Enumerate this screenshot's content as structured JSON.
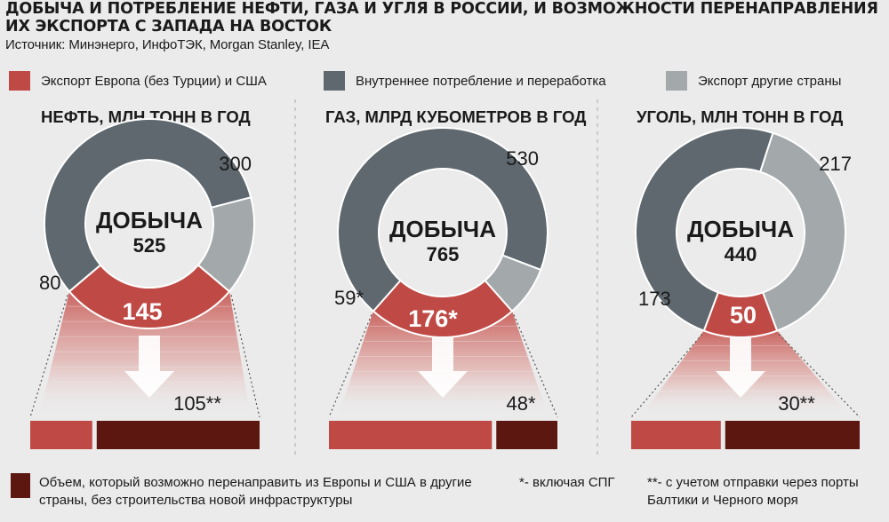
{
  "title": "ДОБЫЧА И ПОТРЕБЛЕНИЕ НЕФТИ, ГАЗА И УГЛЯ В РОССИИ, И ВОЗМОЖНОСТИ ПЕРЕНАПРАВЛЕНИЯ ИХ ЭКСПОРТА С ЗАПАДА НА ВОСТОК",
  "source": "Источник: Минэнерго, ИнфоТЭК, Morgan Stanley, IEA",
  "legend": [
    {
      "label": "Экспорт Европа (без Турции) и США",
      "color": "#bf4a45"
    },
    {
      "label": "Внутреннее потребление и переработка",
      "color": "#5e686e"
    },
    {
      "label": "Экспорт другие страны",
      "color": "#a3a8ab"
    }
  ],
  "center_label": "ДОБЫЧА",
  "chart_data": [
    {
      "type": "pie",
      "title": "НЕФТЬ, МЛН ТОНН В ГОД",
      "total": 525,
      "total_label": "525",
      "segments": [
        {
          "name": "Экспорт Европа (без Турции) и США",
          "value": 145,
          "label": "145"
        },
        {
          "name": "Внутреннее потребление и переработка",
          "value": 300,
          "label": "300"
        },
        {
          "name": "Экспорт другие страны",
          "value": 80,
          "label": "80"
        }
      ],
      "redirectable": {
        "value": 105,
        "label": "105**"
      },
      "europe_export": 145
    },
    {
      "type": "pie",
      "title": "ГАЗ, МЛРД КУБОМЕТРОВ В ГОД",
      "total": 765,
      "total_label": "765",
      "segments": [
        {
          "name": "Экспорт Европа (без Турции) и США",
          "value": 176,
          "label": "176*"
        },
        {
          "name": "Внутреннее потребление и переработка",
          "value": 530,
          "label": "530"
        },
        {
          "name": "Экспорт другие страны",
          "value": 59,
          "label": "59*"
        }
      ],
      "redirectable": {
        "value": 48,
        "label": "48*"
      },
      "europe_export": 176
    },
    {
      "type": "pie",
      "title": "УГОЛЬ, МЛН ТОНН В ГОД",
      "total": 440,
      "total_label": "440",
      "segments": [
        {
          "name": "Экспорт Европа (без Турции) и США",
          "value": 50,
          "label": "50"
        },
        {
          "name": "Внутреннее потребление и переработка",
          "value": 217,
          "label": "217"
        },
        {
          "name": "Экспорт другие страны",
          "value": 173,
          "label": "173"
        }
      ],
      "redirectable": {
        "value": 30,
        "label": "30**"
      },
      "europe_export": 50
    }
  ],
  "footer": {
    "legend_text": "Объем, который возможно перенаправить из Европы и США в другие страны, без строительства новой инфраструктуры",
    "note1": "*- включая СПГ",
    "note2": "**- с учетом отправки через порты Балтики и Черного моря",
    "redirect_color": "#5b1710"
  }
}
